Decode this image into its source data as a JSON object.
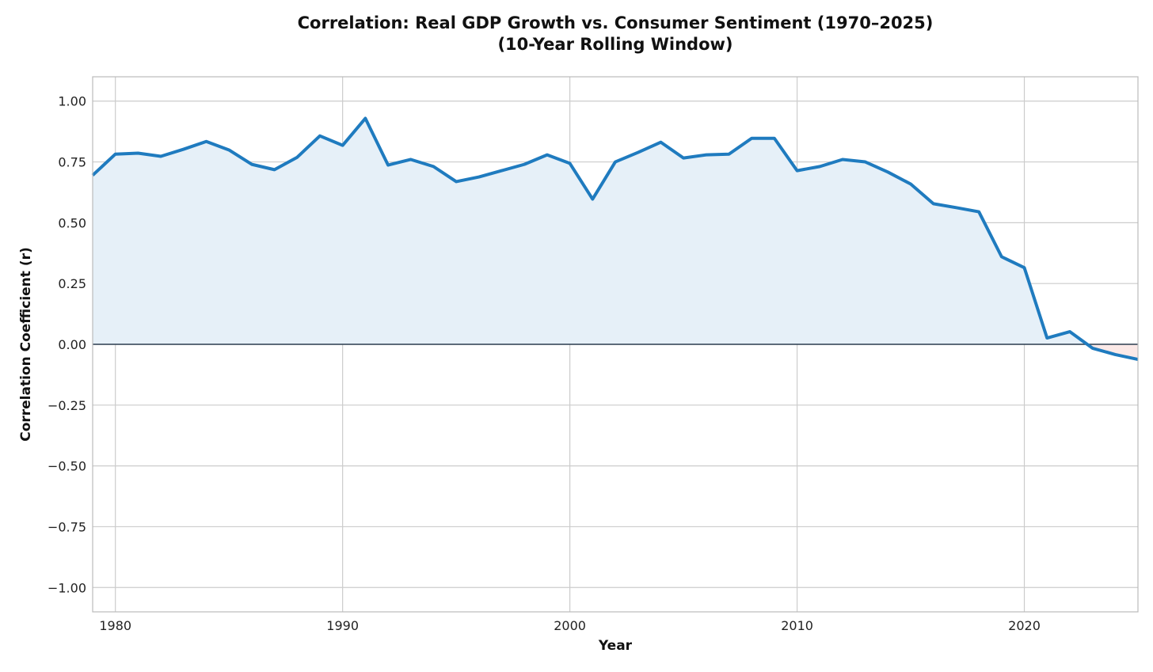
{
  "chart_data": {
    "type": "area",
    "title": "Correlation: Real GDP Growth vs. Consumer Sentiment (1970–2025)",
    "subtitle": "(10-Year Rolling Window)",
    "xlabel": "Year",
    "ylabel": "Correlation Coefficient (r)",
    "xlim": [
      1979,
      2025
    ],
    "ylim": [
      -1.1,
      1.1
    ],
    "grid": true,
    "xticks": [
      "1980",
      "1990",
      "2000",
      "2010",
      "2020"
    ],
    "yticks": [
      "1.00",
      "0.75",
      "0.50",
      "0.25",
      "0.00",
      "−0.25",
      "−0.50",
      "−0.75",
      "−1.00"
    ],
    "x": [
      1979,
      1980,
      1981,
      1982,
      1983,
      1984,
      1985,
      1986,
      1987,
      1988,
      1989,
      1990,
      1991,
      1992,
      1993,
      1994,
      1995,
      1996,
      1997,
      1998,
      1999,
      2000,
      2001,
      2002,
      2003,
      2004,
      2005,
      2006,
      2007,
      2008,
      2009,
      2010,
      2011,
      2012,
      2013,
      2014,
      2015,
      2016,
      2017,
      2018,
      2019,
      2020,
      2021,
      2022,
      2023,
      2024,
      2025
    ],
    "series": [
      {
        "values": [
          0.695,
          0.782,
          0.786,
          0.773,
          0.802,
          0.834,
          0.799,
          0.74,
          0.718,
          0.769,
          0.857,
          0.818,
          0.929,
          0.737,
          0.76,
          0.731,
          0.669,
          0.688,
          0.714,
          0.74,
          0.779,
          0.744,
          0.597,
          0.75,
          0.789,
          0.831,
          0.766,
          0.779,
          0.782,
          0.847,
          0.847,
          0.714,
          0.731,
          0.76,
          0.75,
          0.708,
          0.659,
          0.578,
          0.562,
          0.545,
          0.36,
          0.315,
          0.026,
          0.052,
          -0.016,
          -0.042,
          -0.062
        ]
      }
    ],
    "colors": {
      "line": "#1f7bbf",
      "positive_fill": "#e6f0f8",
      "negative_fill": "#fbe9e7",
      "zero_line": "#2c3e50",
      "grid": "#cccccc"
    }
  }
}
